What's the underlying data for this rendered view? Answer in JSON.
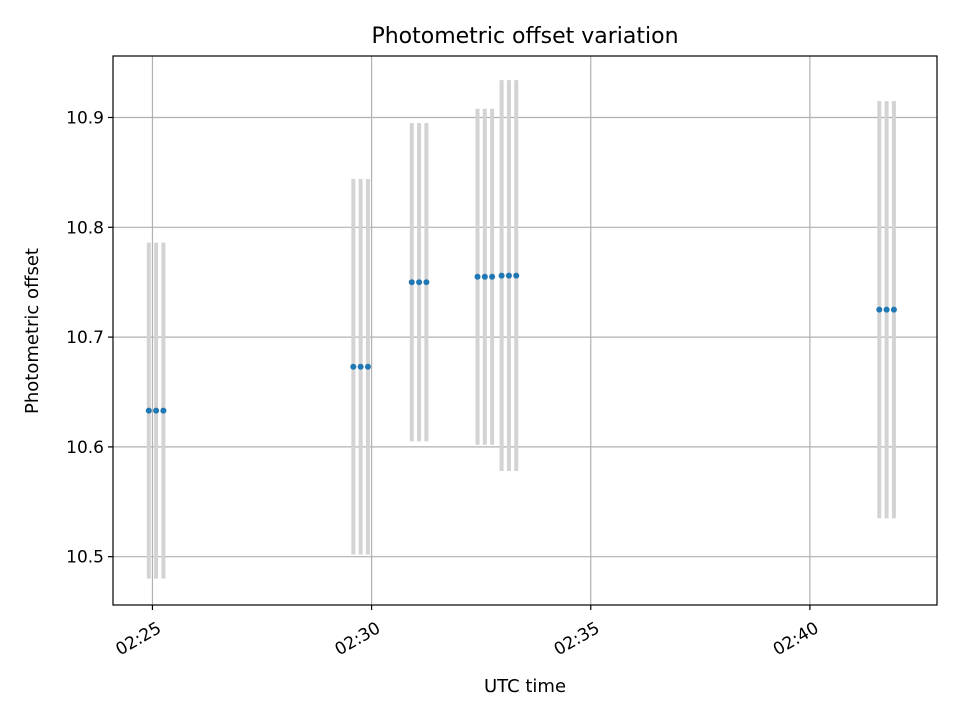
{
  "chart_data": {
    "type": "scatter",
    "title": "Photometric offset variation",
    "xlabel": "UTC time",
    "ylabel": "Photometric offset",
    "x_ticks": [
      "02:25",
      "02:30",
      "02:35",
      "02:40"
    ],
    "x_tick_values": [
      "02:25:00",
      "02:30:00",
      "02:35:00",
      "02:40:00"
    ],
    "xlim": [
      "02:24:06",
      "02:42:54"
    ],
    "y_ticks": [
      "10.5",
      "10.6",
      "10.7",
      "10.8",
      "10.9"
    ],
    "y_tick_values": [
      10.5,
      10.6,
      10.7,
      10.8,
      10.9
    ],
    "ylim": [
      10.456,
      10.956
    ],
    "grid": true,
    "colors": {
      "marker": "#1f77b4",
      "errorbar": "#d3d3d3",
      "grid": "#b0b0b0"
    },
    "points": [
      {
        "x": "02:24:55",
        "y": 10.633,
        "yerr": 0.153
      },
      {
        "x": "02:25:05",
        "y": 10.633,
        "yerr": 0.153
      },
      {
        "x": "02:25:15",
        "y": 10.633,
        "yerr": 0.153
      },
      {
        "x": "02:29:35",
        "y": 10.673,
        "yerr": 0.171
      },
      {
        "x": "02:29:45",
        "y": 10.673,
        "yerr": 0.171
      },
      {
        "x": "02:29:55",
        "y": 10.673,
        "yerr": 0.171
      },
      {
        "x": "02:30:55",
        "y": 10.75,
        "yerr": 0.145
      },
      {
        "x": "02:31:05",
        "y": 10.75,
        "yerr": 0.145
      },
      {
        "x": "02:31:15",
        "y": 10.75,
        "yerr": 0.145
      },
      {
        "x": "02:32:25",
        "y": 10.755,
        "yerr": 0.153
      },
      {
        "x": "02:32:35",
        "y": 10.755,
        "yerr": 0.153
      },
      {
        "x": "02:32:45",
        "y": 10.755,
        "yerr": 0.153
      },
      {
        "x": "02:32:58",
        "y": 10.756,
        "yerr": 0.178
      },
      {
        "x": "02:33:08",
        "y": 10.756,
        "yerr": 0.178
      },
      {
        "x": "02:33:18",
        "y": 10.756,
        "yerr": 0.178
      },
      {
        "x": "02:41:35",
        "y": 10.725,
        "yerr": 0.19
      },
      {
        "x": "02:41:45",
        "y": 10.725,
        "yerr": 0.19
      },
      {
        "x": "02:41:55",
        "y": 10.725,
        "yerr": 0.19
      }
    ]
  }
}
